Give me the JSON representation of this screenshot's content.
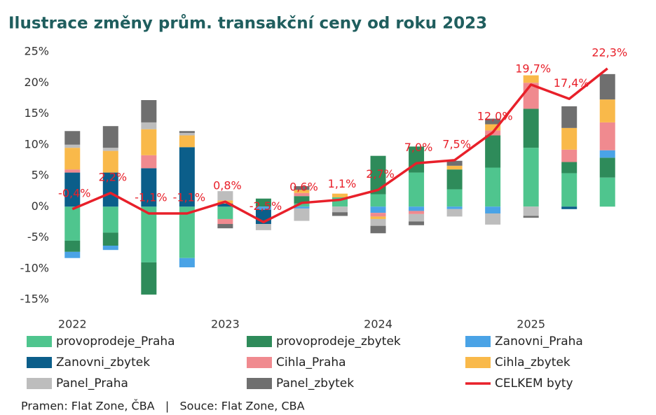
{
  "chart_data": {
    "type": "bar",
    "stacked": true,
    "title": "Ilustrace změny prům. transakční ceny od roku 2023",
    "source": "Pramen: Flat Zone, ČBA   |   Souce: Flat Zone, CBA",
    "categories": [
      "2022",
      null,
      null,
      null,
      "2023",
      null,
      null,
      null,
      "2024",
      null,
      null,
      null,
      "2025",
      null,
      null
    ],
    "ylim": [
      -15,
      25
    ],
    "yticks": [
      {
        "value": -15,
        "label": "-15%"
      },
      {
        "value": -10,
        "label": "-10%"
      },
      {
        "value": -5,
        "label": "-5%"
      },
      {
        "value": 0,
        "label": "0%"
      },
      {
        "value": 5,
        "label": "5%"
      },
      {
        "value": 10,
        "label": "10%"
      },
      {
        "value": 15,
        "label": "15%"
      },
      {
        "value": 20,
        "label": "20%"
      },
      {
        "value": 25,
        "label": "25%"
      }
    ],
    "series": [
      {
        "name": "provoprodeje_Praha",
        "color": "#4fc58e",
        "values": [
          -5.5,
          -4.2,
          -9,
          -8.3,
          -2.0,
          0,
          0.5,
          1.5,
          2,
          5.5,
          2.8,
          6.3,
          9.5,
          5.4,
          4.7
        ]
      },
      {
        "name": "provoprodeje_zbytek",
        "color": "#2e8b5a",
        "values": [
          -1.8,
          -2.1,
          -5.2,
          0,
          0,
          1.3,
          1.2,
          0,
          6.2,
          4.2,
          3.2,
          5.2,
          6.3,
          1.8,
          3.2
        ]
      },
      {
        "name": "Zanovni_Praha",
        "color": "#4aa3e6",
        "values": [
          -1.0,
          -0.7,
          0,
          -1.5,
          0,
          -0.5,
          -0.3,
          0,
          -1,
          -0.7,
          -0.4,
          -1.1,
          0,
          0,
          1.2
        ]
      },
      {
        "name": "Zanovni_zbytek",
        "color": "#0b5e8a",
        "values": [
          5.5,
          5.5,
          6.2,
          9.6,
          0.5,
          -2.3,
          0,
          0,
          0,
          0,
          0,
          0,
          0,
          -0.4,
          0
        ]
      },
      {
        "name": "Cihla_Praha",
        "color": "#f08a8f",
        "values": [
          0.5,
          0,
          2.1,
          0,
          -0.8,
          0,
          0.5,
          0,
          -0.6,
          -0.5,
          0,
          0.8,
          4.2,
          2.0,
          4.5
        ]
      },
      {
        "name": "Cihla_zbytek",
        "color": "#f9b94a",
        "values": [
          3.5,
          3.5,
          4.2,
          1.9,
          0.5,
          0,
          0.5,
          0.6,
          -0.4,
          0,
          0.6,
          1,
          1.2,
          3.5,
          3.7
        ]
      },
      {
        "name": "Panel_Praha",
        "color": "#bdbdbd",
        "values": [
          0.5,
          0.5,
          1.1,
          0.4,
          1.5,
          -1.0,
          -2.0,
          -0.9,
          -1.1,
          -1.2,
          -1.2,
          -1.8,
          -1.5,
          0,
          0
        ]
      },
      {
        "name": "Panel_zbytek",
        "color": "#6f6f6f",
        "values": [
          2.2,
          3.5,
          3.6,
          0.3,
          -0.7,
          0,
          0.6,
          -0.6,
          -1.2,
          -0.6,
          0.8,
          0.9,
          -0.3,
          3.5,
          4.1
        ]
      },
      {
        "name": "CELKEM byty",
        "color": "#e8202a",
        "type": "line",
        "values": [
          -0.4,
          2.2,
          -1.1,
          -1.1,
          0.8,
          -2.5,
          0.6,
          1.1,
          2.7,
          7.0,
          7.5,
          12.0,
          19.7,
          17.4,
          22.3
        ],
        "value_labels": [
          "-0,4%",
          "2,2%",
          "-1,1%",
          "-1,1%",
          "0,8%",
          "-2,5%",
          "0,6%",
          "1,1%",
          "2,7%",
          "7,0%",
          "7,5%",
          "12,0%",
          "19,7%",
          "17,4%",
          "22,3%"
        ]
      }
    ]
  }
}
